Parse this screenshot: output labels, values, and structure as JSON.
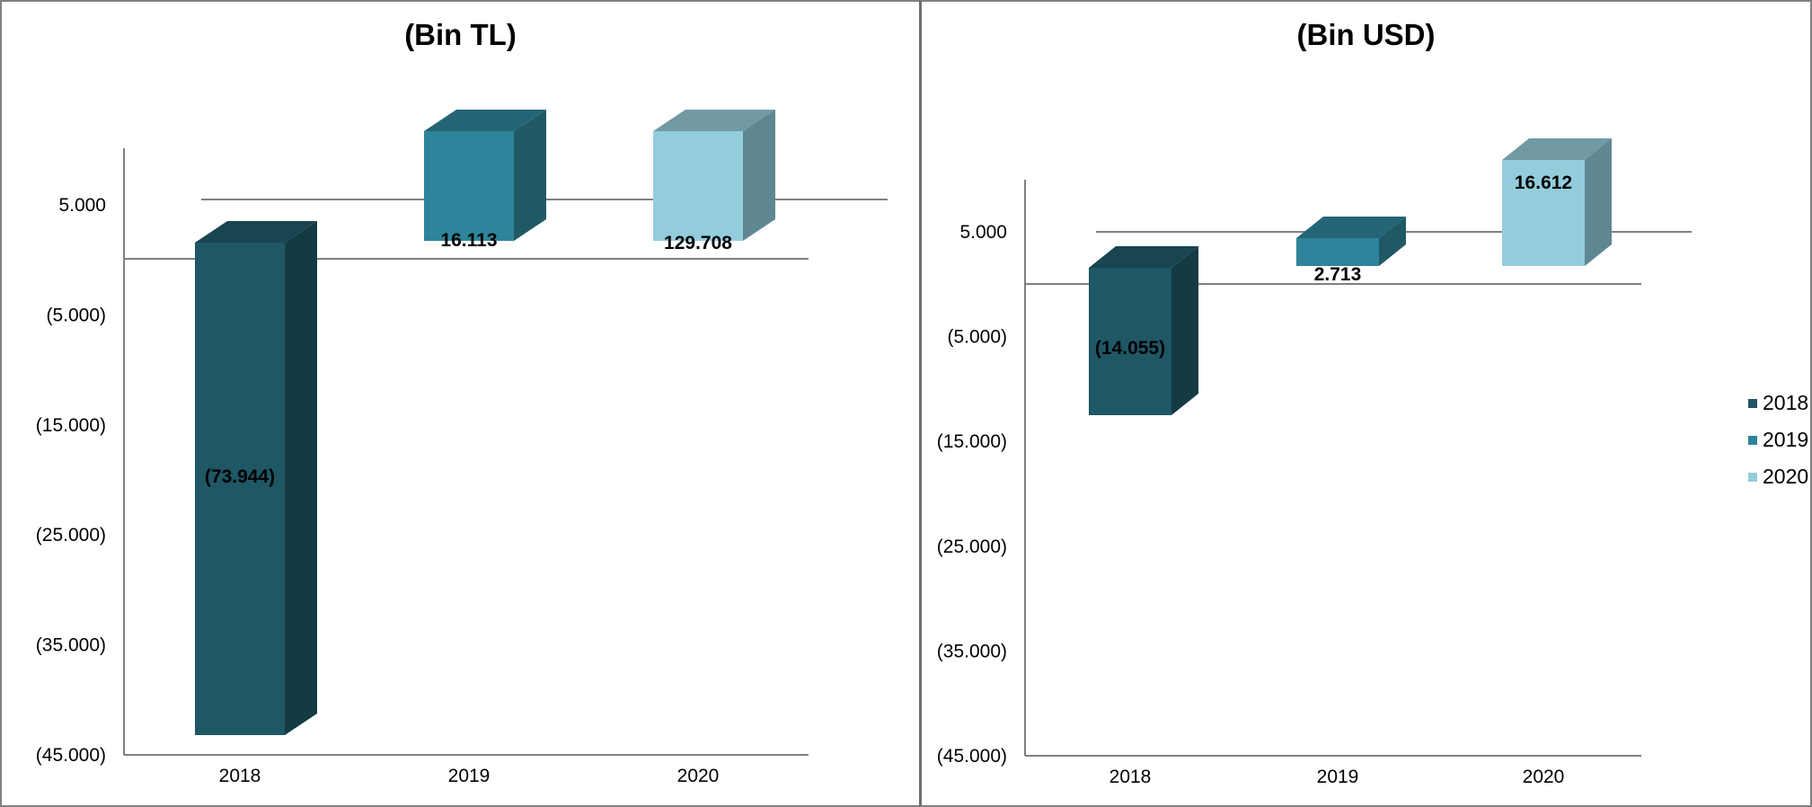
{
  "chart_data": [
    {
      "type": "bar",
      "title": "(Bin TL)",
      "categories": [
        "2018",
        "2019",
        "2020"
      ],
      "values": [
        -73944,
        16113,
        129708
      ],
      "data_labels": [
        "(73.944)",
        "16.113",
        "129.708"
      ],
      "y_ticks": [
        {
          "value": 5000,
          "label": "5.000"
        },
        {
          "value": -5000,
          "label": "(5.000)"
        },
        {
          "value": -15000,
          "label": "(15.000)"
        },
        {
          "value": -25000,
          "label": "(25.000)"
        },
        {
          "value": -35000,
          "label": "(35.000)"
        },
        {
          "value": -45000,
          "label": "(45.000)"
        }
      ],
      "ylim": [
        -45000,
        10000
      ],
      "grid": false,
      "legend": false
    },
    {
      "type": "bar",
      "title": "(Bin USD)",
      "categories": [
        "2018",
        "2019",
        "2020"
      ],
      "values": [
        -14055,
        2713,
        16612
      ],
      "data_labels": [
        "(14.055)",
        "2.713",
        "16.612"
      ],
      "y_ticks": [
        {
          "value": 5000,
          "label": "5.000"
        },
        {
          "value": -5000,
          "label": "(5.000)"
        },
        {
          "value": -15000,
          "label": "(15.000)"
        },
        {
          "value": -25000,
          "label": "(25.000)"
        },
        {
          "value": -35000,
          "label": "(35.000)"
        },
        {
          "value": -45000,
          "label": "(45.000)"
        }
      ],
      "ylim": [
        -45000,
        10000
      ],
      "grid": false,
      "legend": "right",
      "legend_entries": [
        "2018",
        "2019",
        "2020"
      ]
    }
  ],
  "colors": {
    "2018": {
      "front": "#1f5765",
      "side": "#143b44",
      "top": "#184550"
    },
    "2019": {
      "front": "#2e849a",
      "side": "#1f5966",
      "top": "#236576"
    },
    "2020": {
      "front": "#93cddc",
      "side": "#5f8792",
      "top": "#719aa5"
    }
  }
}
